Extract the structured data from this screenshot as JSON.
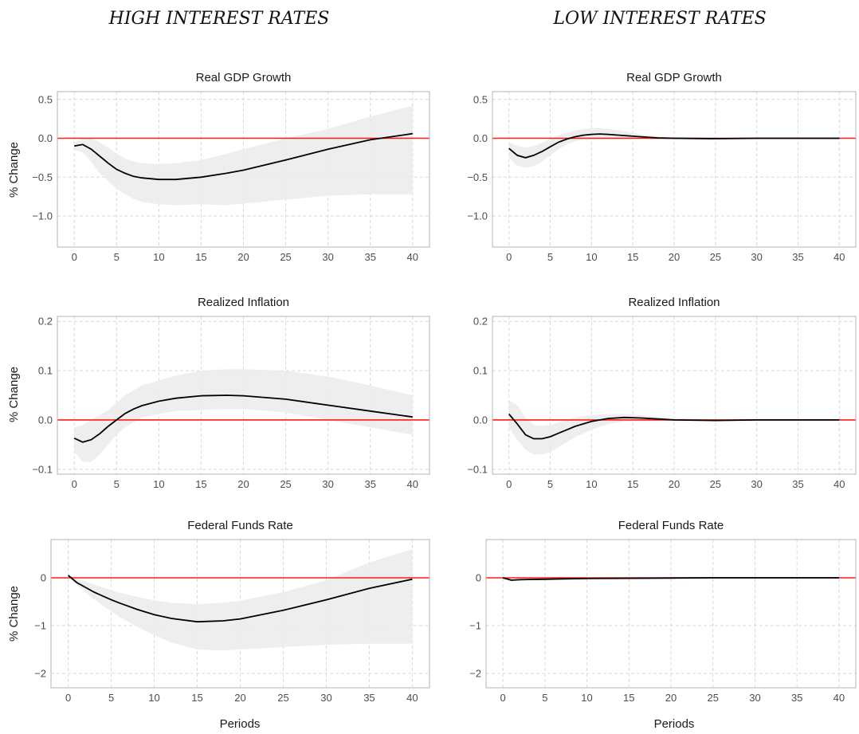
{
  "column_titles": [
    "HIGH INTEREST RATES",
    "LOW INTEREST RATES"
  ],
  "x_axis_label": "Periods",
  "y_axis_label": "% Change",
  "colors": {
    "zero_line": "#ff1a1a",
    "irf_line": "#000000",
    "band": "#ebebeb",
    "grid": "#d9d9d9"
  },
  "chart_data": [
    {
      "type": "line",
      "title": "Real GDP Growth",
      "regime": "HIGH INTEREST RATES",
      "xlabel": "",
      "ylabel": "% Change",
      "xlim": [
        -2,
        42
      ],
      "ylim": [
        -1.4,
        0.6
      ],
      "xticks": [
        0,
        5,
        10,
        15,
        20,
        25,
        30,
        35,
        40
      ],
      "yticks": [
        0.5,
        0.0,
        -0.5,
        -1.0
      ],
      "ytick_labels": [
        "0.5",
        "0.0",
        "−0.5",
        "−1.0"
      ],
      "reference_line": 0,
      "grid": true,
      "x": [
        0,
        1,
        2,
        3,
        4,
        5,
        6,
        7,
        8,
        10,
        12,
        15,
        18,
        20,
        25,
        30,
        35,
        40
      ],
      "y": [
        -0.1,
        -0.08,
        -0.14,
        -0.23,
        -0.32,
        -0.4,
        -0.45,
        -0.49,
        -0.51,
        -0.53,
        -0.53,
        -0.5,
        -0.45,
        -0.41,
        -0.28,
        -0.14,
        -0.02,
        0.06
      ],
      "band_upper": [
        -0.05,
        0.0,
        0.0,
        -0.05,
        -0.12,
        -0.2,
        -0.26,
        -0.3,
        -0.32,
        -0.33,
        -0.32,
        -0.28,
        -0.2,
        -0.14,
        0.0,
        0.12,
        0.28,
        0.42
      ],
      "band_lower": [
        -0.15,
        -0.18,
        -0.3,
        -0.45,
        -0.55,
        -0.65,
        -0.72,
        -0.78,
        -0.82,
        -0.85,
        -0.86,
        -0.85,
        -0.86,
        -0.84,
        -0.79,
        -0.74,
        -0.72,
        -0.72
      ]
    },
    {
      "type": "line",
      "title": "Real GDP Growth",
      "regime": "LOW INTEREST RATES",
      "xlabel": "",
      "ylabel": "",
      "xlim": [
        -2,
        42
      ],
      "ylim": [
        -1.4,
        0.6
      ],
      "xticks": [
        0,
        5,
        10,
        15,
        20,
        25,
        30,
        35,
        40
      ],
      "yticks": [
        0.5,
        0.0,
        -0.5,
        -1.0
      ],
      "ytick_labels": [
        "0.5",
        "0.0",
        "−0.5",
        "−1.0"
      ],
      "reference_line": 0,
      "grid": true,
      "x": [
        0,
        1,
        2,
        3,
        4,
        5,
        6,
        7,
        8,
        9,
        10,
        11,
        12,
        14,
        16,
        18,
        20,
        25,
        30,
        35,
        40
      ],
      "y": [
        -0.13,
        -0.22,
        -0.25,
        -0.22,
        -0.17,
        -0.11,
        -0.05,
        -0.01,
        0.02,
        0.04,
        0.05,
        0.055,
        0.05,
        0.035,
        0.02,
        0.005,
        0.0,
        -0.005,
        0.0,
        0.0,
        0.0
      ],
      "band_upper": [
        -0.05,
        -0.1,
        -0.12,
        -0.1,
        -0.06,
        -0.01,
        0.04,
        0.07,
        0.1,
        0.12,
        0.13,
        0.13,
        0.12,
        0.09,
        0.05,
        0.02,
        0.01,
        0.0,
        0.0,
        0.0,
        0.0
      ],
      "band_lower": [
        -0.25,
        -0.35,
        -0.38,
        -0.36,
        -0.3,
        -0.22,
        -0.14,
        -0.08,
        -0.04,
        -0.02,
        -0.02,
        -0.02,
        -0.02,
        -0.02,
        -0.01,
        -0.01,
        -0.01,
        -0.01,
        0.0,
        0.0,
        0.0
      ]
    },
    {
      "type": "line",
      "title": "Realized Inflation",
      "regime": "HIGH INTEREST RATES",
      "xlabel": "",
      "ylabel": "% Change",
      "xlim": [
        -2,
        42
      ],
      "ylim": [
        -0.11,
        0.21
      ],
      "xticks": [
        0,
        5,
        10,
        15,
        20,
        25,
        30,
        35,
        40
      ],
      "yticks": [
        0.2,
        0.1,
        0.0,
        -0.1
      ],
      "ytick_labels": [
        "0.2",
        "0.1",
        "0.0",
        "−0.1"
      ],
      "reference_line": 0,
      "grid": true,
      "x": [
        0,
        1,
        2,
        3,
        4,
        5,
        6,
        7,
        8,
        10,
        12,
        15,
        18,
        20,
        25,
        30,
        35,
        40
      ],
      "y": [
        -0.037,
        -0.045,
        -0.04,
        -0.028,
        -0.013,
        0.0,
        0.013,
        0.022,
        0.029,
        0.038,
        0.044,
        0.049,
        0.05,
        0.049,
        0.042,
        0.03,
        0.018,
        0.006
      ],
      "band_upper": [
        -0.015,
        -0.01,
        0.0,
        0.01,
        0.02,
        0.035,
        0.05,
        0.06,
        0.07,
        0.08,
        0.09,
        0.1,
        0.103,
        0.103,
        0.1,
        0.088,
        0.07,
        0.05
      ],
      "band_lower": [
        -0.065,
        -0.085,
        -0.085,
        -0.07,
        -0.05,
        -0.03,
        -0.015,
        -0.005,
        0.005,
        0.012,
        0.018,
        0.02,
        0.022,
        0.022,
        0.015,
        0.0,
        -0.015,
        -0.03
      ]
    },
    {
      "type": "line",
      "title": "Realized Inflation",
      "regime": "LOW INTEREST RATES",
      "xlabel": "",
      "ylabel": "",
      "xlim": [
        -2,
        42
      ],
      "ylim": [
        -0.11,
        0.21
      ],
      "xticks": [
        0,
        5,
        10,
        15,
        20,
        25,
        30,
        35,
        40
      ],
      "yticks": [
        0.2,
        0.1,
        0.0,
        -0.1
      ],
      "ytick_labels": [
        "0.2",
        "0.1",
        "0.0",
        "−0.1"
      ],
      "reference_line": 0,
      "grid": true,
      "x": [
        0,
        1,
        2,
        3,
        4,
        5,
        6,
        7,
        8,
        10,
        12,
        14,
        16,
        18,
        20,
        25,
        30,
        35,
        40
      ],
      "y": [
        0.012,
        -0.008,
        -0.03,
        -0.038,
        -0.038,
        -0.034,
        -0.027,
        -0.02,
        -0.013,
        -0.003,
        0.003,
        0.005,
        0.004,
        0.002,
        0.0,
        -0.001,
        0.0,
        0.0,
        0.0
      ],
      "band_upper": [
        0.04,
        0.03,
        0.005,
        -0.01,
        -0.012,
        -0.01,
        -0.005,
        0.0,
        0.005,
        0.01,
        0.012,
        0.012,
        0.01,
        0.006,
        0.003,
        0.001,
        0.0,
        0.0,
        0.0
      ],
      "band_lower": [
        -0.015,
        -0.04,
        -0.06,
        -0.07,
        -0.07,
        -0.065,
        -0.055,
        -0.045,
        -0.035,
        -0.02,
        -0.008,
        -0.003,
        -0.002,
        -0.002,
        -0.002,
        -0.002,
        0.0,
        0.0,
        0.0
      ]
    },
    {
      "type": "line",
      "title": "Federal Funds Rate",
      "regime": "HIGH INTEREST RATES",
      "xlabel": "Periods",
      "ylabel": "% Change",
      "xlim": [
        -2,
        42
      ],
      "ylim": [
        -2.3,
        0.8
      ],
      "xticks": [
        0,
        5,
        10,
        15,
        20,
        25,
        30,
        35,
        40
      ],
      "yticks": [
        0,
        -1,
        -2
      ],
      "ytick_labels": [
        "0",
        "−1",
        "−2"
      ],
      "reference_line": 0,
      "grid": true,
      "x": [
        0,
        1,
        2,
        3,
        4,
        5,
        6,
        8,
        10,
        12,
        15,
        18,
        20,
        25,
        30,
        35,
        40
      ],
      "y": [
        0.05,
        -0.1,
        -0.2,
        -0.3,
        -0.38,
        -0.46,
        -0.53,
        -0.66,
        -0.77,
        -0.85,
        -0.92,
        -0.9,
        -0.86,
        -0.68,
        -0.46,
        -0.22,
        -0.03
      ],
      "band_upper": [
        0.05,
        -0.02,
        -0.08,
        -0.14,
        -0.2,
        -0.26,
        -0.31,
        -0.4,
        -0.47,
        -0.52,
        -0.55,
        -0.52,
        -0.48,
        -0.3,
        -0.05,
        0.32,
        0.6
      ],
      "band_lower": [
        0.05,
        -0.15,
        -0.3,
        -0.45,
        -0.58,
        -0.7,
        -0.82,
        -1.02,
        -1.2,
        -1.35,
        -1.5,
        -1.52,
        -1.5,
        -1.45,
        -1.4,
        -1.38,
        -1.38
      ]
    },
    {
      "type": "line",
      "title": "Federal Funds Rate",
      "regime": "LOW INTEREST RATES",
      "xlabel": "Periods",
      "ylabel": "",
      "xlim": [
        -2,
        42
      ],
      "ylim": [
        -2.3,
        0.8
      ],
      "xticks": [
        0,
        5,
        10,
        15,
        20,
        25,
        30,
        35,
        40
      ],
      "yticks": [
        0,
        -1,
        -2
      ],
      "ytick_labels": [
        "0",
        "−1",
        "−2"
      ],
      "reference_line": 0,
      "grid": true,
      "x": [
        0,
        1,
        2,
        3,
        5,
        8,
        10,
        15,
        20,
        25,
        30,
        35,
        40
      ],
      "y": [
        0.0,
        -0.05,
        -0.04,
        -0.035,
        -0.03,
        -0.02,
        -0.015,
        -0.01,
        -0.005,
        0.0,
        0.0,
        0.0,
        0.0
      ],
      "band_upper": [
        0.02,
        -0.02,
        -0.02,
        -0.02,
        -0.015,
        -0.01,
        -0.008,
        -0.005,
        -0.002,
        0.0,
        0.0,
        0.0,
        0.0
      ],
      "band_lower": [
        -0.02,
        -0.06,
        -0.06,
        -0.05,
        -0.045,
        -0.03,
        -0.022,
        -0.015,
        -0.008,
        -0.003,
        0.0,
        0.0,
        0.0
      ]
    }
  ]
}
